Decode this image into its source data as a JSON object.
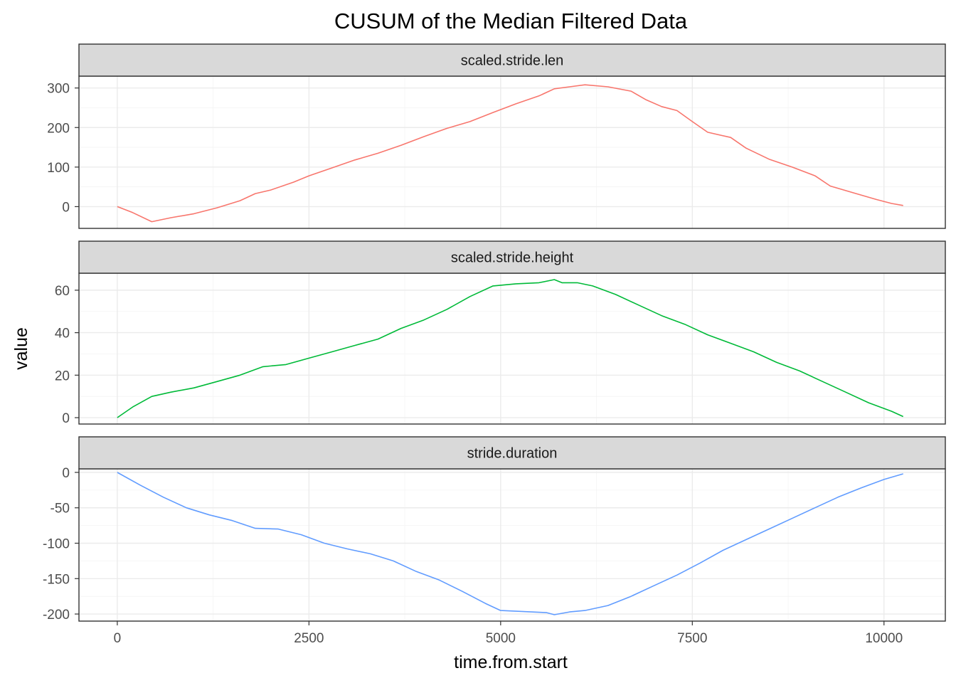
{
  "chart_data": {
    "type": "line",
    "title": "CUSUM of the Median Filtered Data",
    "xlabel": "time.from.start",
    "ylabel": "value",
    "xlim": [
      -500,
      10800
    ],
    "x_ticks": [
      0,
      2500,
      5000,
      7500,
      10000
    ],
    "x_tick_labels": [
      "0",
      "2500",
      "5000",
      "7500",
      "10000"
    ],
    "grid": true,
    "facets": [
      {
        "strip": "scaled.stride.len",
        "color": "#F8766D",
        "ylim": [
          -55,
          330
        ],
        "y_ticks": [
          0,
          100,
          200,
          300
        ],
        "y_tick_labels": [
          "0",
          "100",
          "200",
          "300"
        ],
        "x": [
          0,
          200,
          450,
          700,
          1000,
          1300,
          1600,
          1800,
          2000,
          2300,
          2500,
          2800,
          3100,
          3400,
          3700,
          4000,
          4300,
          4600,
          4900,
          5200,
          5500,
          5700,
          5900,
          6100,
          6400,
          6700,
          6900,
          7100,
          7300,
          7500,
          7700,
          8000,
          8200,
          8500,
          8800,
          9100,
          9300,
          9600,
          9900,
          10100,
          10250
        ],
        "y": [
          0,
          -15,
          -38,
          -28,
          -18,
          -3,
          15,
          33,
          42,
          62,
          78,
          98,
          118,
          135,
          155,
          177,
          198,
          215,
          238,
          260,
          280,
          298,
          303,
          308,
          303,
          292,
          270,
          253,
          243,
          215,
          188,
          175,
          148,
          120,
          100,
          78,
          52,
          35,
          18,
          8,
          3
        ]
      },
      {
        "strip": "scaled.stride.height",
        "color": "#00BA38",
        "ylim": [
          -3,
          68
        ],
        "y_ticks": [
          0,
          20,
          40,
          60
        ],
        "y_tick_labels": [
          "0",
          "20",
          "40",
          "60"
        ],
        "x": [
          0,
          200,
          450,
          700,
          1000,
          1300,
          1600,
          1900,
          2200,
          2500,
          2800,
          3100,
          3400,
          3700,
          4000,
          4300,
          4600,
          4900,
          5200,
          5500,
          5700,
          5800,
          6000,
          6200,
          6500,
          6800,
          7100,
          7400,
          7700,
          8000,
          8300,
          8600,
          8900,
          9200,
          9500,
          9800,
          10100,
          10250
        ],
        "y": [
          0,
          5,
          10,
          12,
          14,
          17,
          20,
          24,
          25,
          28,
          31,
          34,
          37,
          42,
          46,
          51,
          57,
          62,
          63,
          63.5,
          65,
          63.5,
          63.5,
          62,
          58,
          53,
          48,
          44,
          39,
          35,
          31,
          26,
          22,
          17,
          12,
          7,
          3,
          0.5
        ]
      },
      {
        "strip": "stride.duration",
        "color": "#619CFF",
        "ylim": [
          -210,
          5
        ],
        "y_ticks": [
          0,
          -50,
          -100,
          -150,
          -200
        ],
        "y_tick_labels": [
          "0",
          "-50",
          "-100",
          "-150",
          "-200"
        ],
        "x": [
          0,
          300,
          600,
          900,
          1200,
          1500,
          1800,
          2100,
          2400,
          2700,
          3000,
          3300,
          3600,
          3900,
          4200,
          4500,
          4800,
          5000,
          5200,
          5400,
          5600,
          5700,
          5900,
          6100,
          6400,
          6700,
          7000,
          7300,
          7600,
          7900,
          8200,
          8500,
          8800,
          9100,
          9400,
          9700,
          10000,
          10250
        ],
        "y": [
          0,
          -18,
          -35,
          -50,
          -60,
          -68,
          -79,
          -80,
          -88,
          -100,
          -108,
          -115,
          -125,
          -140,
          -152,
          -168,
          -185,
          -195,
          -196,
          -197,
          -198,
          -201,
          -197,
          -195,
          -188,
          -175,
          -160,
          -145,
          -128,
          -110,
          -95,
          -80,
          -65,
          -50,
          -35,
          -22,
          -10,
          -2
        ]
      }
    ]
  }
}
